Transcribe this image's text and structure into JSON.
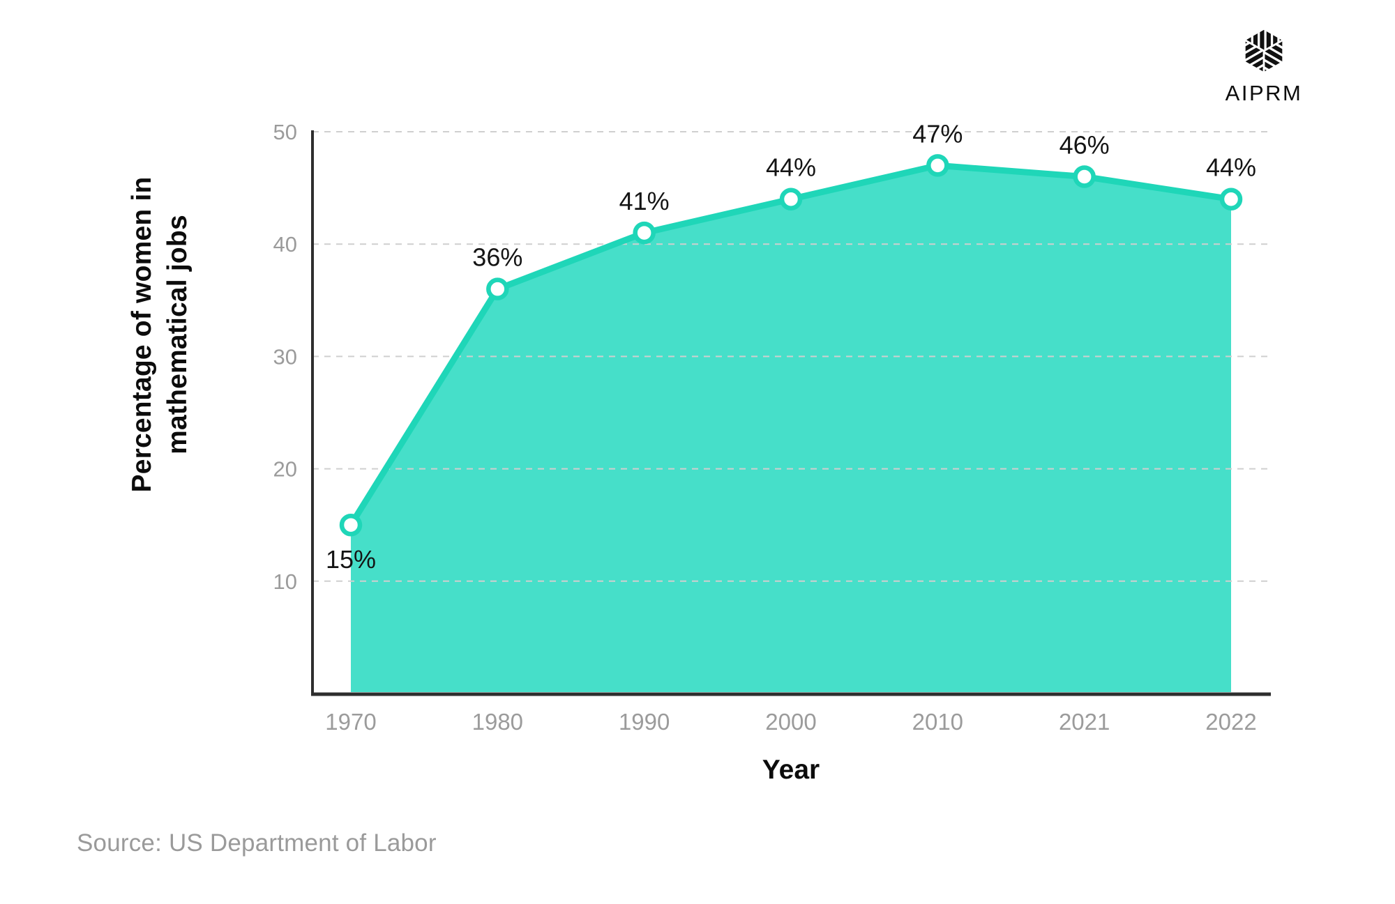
{
  "page": {
    "background": "#ffffff"
  },
  "logo": {
    "text": "AIPRM",
    "icon": "aiprm-cube-icon",
    "color": "#111111"
  },
  "source": {
    "label": "Source: US Department of Labor",
    "color": "#9a9a9a"
  },
  "chart_data": {
    "type": "area",
    "categories": [
      "1970",
      "1980",
      "1990",
      "2000",
      "2010",
      "2021",
      "2022"
    ],
    "values": [
      15,
      36,
      41,
      44,
      47,
      46,
      44
    ],
    "point_labels": [
      "15%",
      "36%",
      "41%",
      "44%",
      "47%",
      "46%",
      "44%"
    ],
    "title": "",
    "xlabel": "Year",
    "ylabel": "Percentage of women in mathematical jobs",
    "ylabel_lines": [
      "Percentage of women in",
      "mathematical jobs"
    ],
    "yticks": [
      10,
      20,
      30,
      40,
      50
    ],
    "ylim": [
      0,
      50
    ],
    "grid": "horizontal-dashed",
    "legend": "none",
    "colors": {
      "line": "#1fd6b8",
      "fill": "#46dfc9",
      "marker_fill": "#ffffff",
      "marker_stroke": "#1fd6b8",
      "axis": "#2e2e2e",
      "grid": "#cfcfcf",
      "tick_label": "#9b9b9b",
      "data_label": "#141414"
    }
  }
}
